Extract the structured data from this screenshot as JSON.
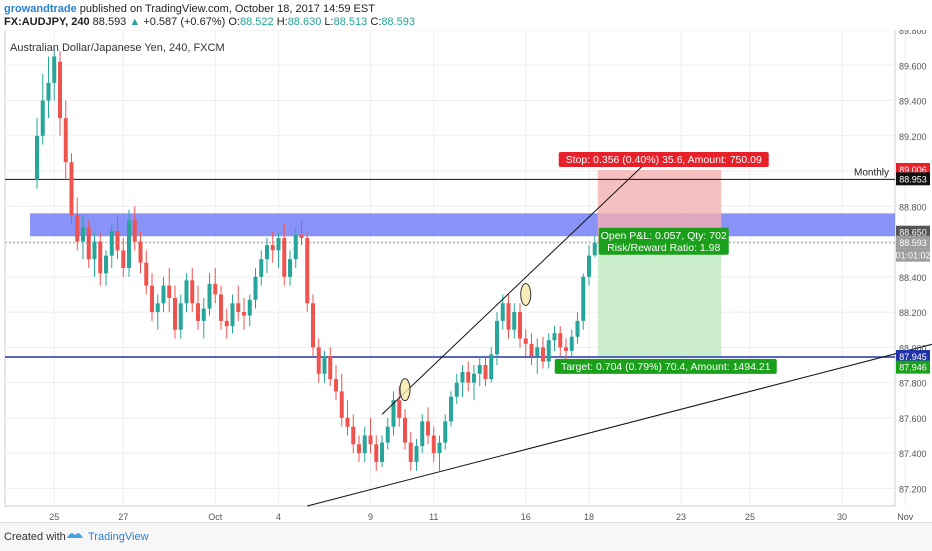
{
  "header": {
    "author": "growandtrade",
    "published_text": "published on TradingView.com, October 18, 2017 14:59 EST",
    "symbol": "FX:AUDJPY, 240",
    "last": "88.593",
    "change_arrow": "▲",
    "change": "+0.587 (+0.67%)",
    "o_label": "O:",
    "o_value": "88.522",
    "h_label": "H:",
    "h_value": "88.630",
    "l_label": "L:",
    "l_value": "88.513",
    "c_label": "C:",
    "c_value": "88.593"
  },
  "footer": {
    "created_with": "Created with",
    "brand": "TradingView",
    "logo_icon": "tradingview-logo-icon"
  },
  "colors": {
    "up": "#26a69a",
    "down": "#ef5350",
    "resistance_zone": "#6b78f5",
    "support_line": "#2233aa",
    "stop_zone": "#f5b0b0",
    "target_zone": "#c8ecc8",
    "stop_label": "#e8202a",
    "target_label": "#1aa01a"
  },
  "chart_data": {
    "type": "candlestick",
    "title": "Australian Dollar/Japanese Yen, 240, FXCM",
    "ylim": [
      87.1,
      89.8
    ],
    "y_ticks": [
      "89.800",
      "89.600",
      "89.400",
      "89.200",
      "89.000",
      "88.800",
      "88.600",
      "88.400",
      "88.200",
      "88.000",
      "87.800",
      "87.600",
      "87.400",
      "87.200"
    ],
    "x_ticks": [
      {
        "label": "25",
        "bar": 3
      },
      {
        "label": "27",
        "bar": 15
      },
      {
        "label": "Oct",
        "bar": 31
      },
      {
        "label": "4",
        "bar": 42
      },
      {
        "label": "9",
        "bar": 58
      },
      {
        "label": "11",
        "bar": 69
      },
      {
        "label": "16",
        "bar": 85
      },
      {
        "label": "18",
        "bar": 96
      },
      {
        "label": "23",
        "bar": 112
      },
      {
        "label": "25",
        "bar": 124
      },
      {
        "label": "30",
        "bar": 140
      },
      {
        "label": "Nov",
        "bar": 151
      }
    ],
    "candles": [
      [
        88.95,
        89.3,
        88.9,
        89.2
      ],
      [
        89.2,
        89.55,
        89.15,
        89.4
      ],
      [
        89.4,
        89.65,
        89.3,
        89.5
      ],
      [
        89.5,
        89.7,
        89.4,
        89.65
      ],
      [
        89.62,
        89.68,
        89.2,
        89.3
      ],
      [
        89.3,
        89.4,
        88.95,
        89.05
      ],
      [
        89.05,
        89.1,
        88.7,
        88.75
      ],
      [
        88.75,
        88.85,
        88.55,
        88.6
      ],
      [
        88.6,
        88.75,
        88.5,
        88.68
      ],
      [
        88.68,
        88.72,
        88.45,
        88.5
      ],
      [
        88.5,
        88.65,
        88.4,
        88.6
      ],
      [
        88.6,
        88.65,
        88.35,
        88.42
      ],
      [
        88.42,
        88.55,
        88.35,
        88.52
      ],
      [
        88.52,
        88.7,
        88.45,
        88.66
      ],
      [
        88.66,
        88.75,
        88.5,
        88.55
      ],
      [
        88.55,
        88.62,
        88.4,
        88.45
      ],
      [
        88.45,
        88.78,
        88.4,
        88.72
      ],
      [
        88.72,
        88.8,
        88.55,
        88.6
      ],
      [
        88.6,
        88.66,
        88.42,
        88.48
      ],
      [
        88.48,
        88.55,
        88.3,
        88.35
      ],
      [
        88.35,
        88.42,
        88.15,
        88.2
      ],
      [
        88.2,
        88.3,
        88.1,
        88.25
      ],
      [
        88.25,
        88.4,
        88.2,
        88.35
      ],
      [
        88.35,
        88.45,
        88.2,
        88.28
      ],
      [
        88.28,
        88.35,
        88.05,
        88.1
      ],
      [
        88.1,
        88.3,
        88.05,
        88.25
      ],
      [
        88.25,
        88.42,
        88.2,
        88.38
      ],
      [
        88.38,
        88.45,
        88.2,
        88.25
      ],
      [
        88.25,
        88.35,
        88.1,
        88.15
      ],
      [
        88.15,
        88.28,
        88.05,
        88.22
      ],
      [
        88.22,
        88.42,
        88.18,
        88.36
      ],
      [
        88.36,
        88.45,
        88.25,
        88.3
      ],
      [
        88.3,
        88.35,
        88.1,
        88.15
      ],
      [
        88.15,
        88.22,
        88.05,
        88.12
      ],
      [
        88.12,
        88.3,
        88.08,
        88.25
      ],
      [
        88.25,
        88.35,
        88.15,
        88.2
      ],
      [
        88.2,
        88.28,
        88.1,
        88.18
      ],
      [
        88.18,
        88.3,
        88.12,
        88.27
      ],
      [
        88.27,
        88.45,
        88.22,
        88.4
      ],
      [
        88.4,
        88.55,
        88.35,
        88.5
      ],
      [
        88.5,
        88.62,
        88.42,
        88.58
      ],
      [
        88.58,
        88.66,
        88.48,
        88.55
      ],
      [
        88.55,
        88.65,
        88.45,
        88.62
      ],
      [
        88.62,
        88.7,
        88.35,
        88.4
      ],
      [
        88.4,
        88.55,
        88.35,
        88.5
      ],
      [
        88.5,
        88.68,
        88.45,
        88.64
      ],
      [
        88.64,
        88.72,
        88.58,
        88.62
      ],
      [
        88.62,
        88.66,
        88.2,
        88.25
      ],
      [
        88.25,
        88.3,
        87.95,
        88.0
      ],
      [
        88.0,
        88.05,
        87.8,
        87.85
      ],
      [
        87.85,
        87.98,
        87.8,
        87.95
      ],
      [
        87.95,
        88.0,
        87.78,
        87.82
      ],
      [
        87.82,
        87.9,
        87.7,
        87.75
      ],
      [
        87.75,
        87.85,
        87.55,
        87.6
      ],
      [
        87.6,
        87.7,
        87.5,
        87.55
      ],
      [
        87.55,
        87.62,
        87.4,
        87.45
      ],
      [
        87.45,
        87.5,
        87.35,
        87.4
      ],
      [
        87.4,
        87.55,
        87.35,
        87.5
      ],
      [
        87.5,
        87.6,
        87.4,
        87.45
      ],
      [
        87.45,
        87.5,
        87.3,
        87.35
      ],
      [
        87.35,
        87.5,
        87.32,
        87.46
      ],
      [
        87.46,
        87.6,
        87.42,
        87.55
      ],
      [
        87.55,
        87.75,
        87.5,
        87.7
      ],
      [
        87.7,
        87.78,
        87.55,
        87.6
      ],
      [
        87.6,
        87.65,
        87.42,
        87.46
      ],
      [
        87.46,
        87.52,
        87.3,
        87.35
      ],
      [
        87.35,
        87.48,
        87.3,
        87.44
      ],
      [
        87.44,
        87.62,
        87.4,
        87.58
      ],
      [
        87.58,
        87.66,
        87.45,
        87.5
      ],
      [
        87.5,
        87.55,
        87.35,
        87.4
      ],
      [
        87.4,
        87.5,
        87.3,
        87.46
      ],
      [
        87.46,
        87.62,
        87.42,
        87.58
      ],
      [
        87.58,
        87.75,
        87.55,
        87.72
      ],
      [
        87.72,
        87.85,
        87.68,
        87.8
      ],
      [
        87.8,
        87.9,
        87.72,
        87.86
      ],
      [
        87.86,
        87.92,
        87.75,
        87.8
      ],
      [
        87.8,
        87.9,
        87.7,
        87.85
      ],
      [
        87.85,
        87.95,
        87.78,
        87.9
      ],
      [
        87.9,
        87.95,
        87.78,
        87.82
      ],
      [
        87.82,
        88.0,
        87.8,
        87.96
      ],
      [
        87.96,
        88.2,
        87.9,
        88.15
      ],
      [
        88.15,
        88.3,
        88.1,
        88.25
      ],
      [
        88.25,
        88.3,
        88.05,
        88.1
      ],
      [
        88.1,
        88.25,
        88.05,
        88.2
      ],
      [
        88.2,
        88.25,
        88.0,
        88.05
      ],
      [
        88.05,
        88.1,
        87.95,
        88.02
      ],
      [
        88.02,
        88.08,
        87.9,
        87.95
      ],
      [
        87.95,
        88.05,
        87.85,
        88.0
      ],
      [
        88.0,
        88.06,
        87.88,
        87.92
      ],
      [
        87.92,
        88.08,
        87.88,
        88.04
      ],
      [
        88.04,
        88.12,
        87.98,
        88.08
      ],
      [
        88.08,
        88.12,
        87.95,
        88.0
      ],
      [
        88.0,
        88.05,
        87.92,
        87.98
      ],
      [
        87.98,
        88.1,
        87.95,
        88.06
      ],
      [
        88.06,
        88.2,
        88.02,
        88.15
      ],
      [
        88.15,
        88.42,
        88.1,
        88.4
      ],
      [
        88.4,
        88.58,
        88.35,
        88.52
      ],
      [
        88.522,
        88.63,
        88.513,
        88.593
      ]
    ],
    "annotations": {
      "resistance_zone": {
        "low": 88.63,
        "high": 88.76
      },
      "support_level": 87.945,
      "monthly_level": {
        "price": 88.953,
        "label": "Monthly"
      },
      "trade_entry": 88.593,
      "stop_level": 89.006,
      "target_level": 87.946,
      "stop_label": "Stop: 0.356 (0.40%) 35.6, Amount: 750.09",
      "target_label": "Target: 0.704 (0.79%) 70.4, Amount: 1494.21",
      "pnl_label": "Open P&L: 0.057, Qty: 702",
      "rr_label": "Risk/Reward Ratio: 1.98",
      "trendline_upper": {
        "from": [
          60,
          87.62
        ],
        "to": [
          106,
          89.05
        ]
      },
      "trendline_lower": {
        "from": [
          47,
          87.1
        ],
        "to": [
          156,
          88.02
        ]
      },
      "circle_points": [
        [
          64,
          87.76
        ],
        [
          85,
          88.3
        ]
      ]
    },
    "price_badges": [
      {
        "text": "89.006",
        "price": 89.006,
        "color": "#e8202a"
      },
      {
        "text": "88.953",
        "price": 88.953,
        "color": "#111111"
      },
      {
        "text": "88.650",
        "price": 88.65,
        "color": "#555555"
      },
      {
        "text": "88.593",
        "price": 88.593,
        "color": "#9e9e9e"
      },
      {
        "text": "01:01:02",
        "price": 88.52,
        "color": "#9e9e9e"
      },
      {
        "text": "87.945",
        "price": 87.945,
        "color": "#2233aa"
      },
      {
        "text": "87.946",
        "price": 87.885,
        "color": "#1aa01a"
      }
    ]
  }
}
